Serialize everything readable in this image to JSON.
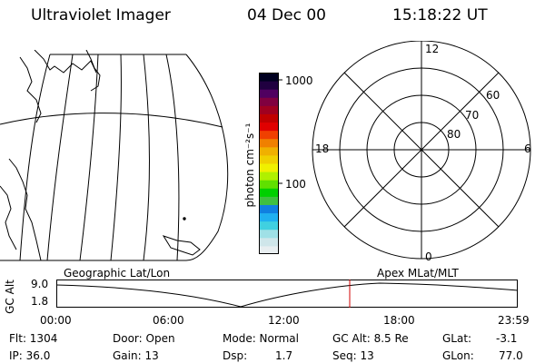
{
  "header": {
    "instrument": "Ultraviolet Imager",
    "date": "04 Dec 00",
    "time": "15:18:22 UT"
  },
  "colorbar": {
    "unit_label": "photon cm⁻²s⁻¹",
    "ticks": [
      "1000",
      "100"
    ],
    "colors": [
      "#e8eef0",
      "#cfe6ea",
      "#9fe0e6",
      "#40d0e0",
      "#20b0f0",
      "#1080e0",
      "#40c040",
      "#00d000",
      "#60e000",
      "#b0f000",
      "#f0f000",
      "#f0d000",
      "#f0b000",
      "#f08000",
      "#f04000",
      "#e00000",
      "#c00000",
      "#a00020",
      "#800040",
      "#500060",
      "#200040",
      "#000020"
    ]
  },
  "map_labels": {
    "left_caption": "Geographic Lat/Lon",
    "right_caption": "Apex MLat/MLT"
  },
  "polar": {
    "mlt_labels": [
      "12",
      "18",
      "6",
      "0"
    ],
    "lat_labels": [
      "60",
      "70",
      "80"
    ]
  },
  "orbit": {
    "axis_label": "GC Alt",
    "y_labels": [
      "9.0",
      "1.8"
    ],
    "time_labels": [
      "00:00",
      "06:00",
      "12:00",
      "18:00",
      "23:59"
    ]
  },
  "footer": {
    "flt": "Flt: 1304",
    "ip": "IP: 36.0",
    "door": "Door: Open",
    "gain": "Gain: 13",
    "mode": "Mode: Normal",
    "dsp_label": "Dsp:",
    "dsp_value": "1.7",
    "gcalt": "GC Alt: 8.5 Re",
    "seq": "Seq: 13",
    "glat_label": "GLat:",
    "glat_value": "-3.1",
    "glon_label": "GLon:",
    "glon_value": "77.0"
  }
}
